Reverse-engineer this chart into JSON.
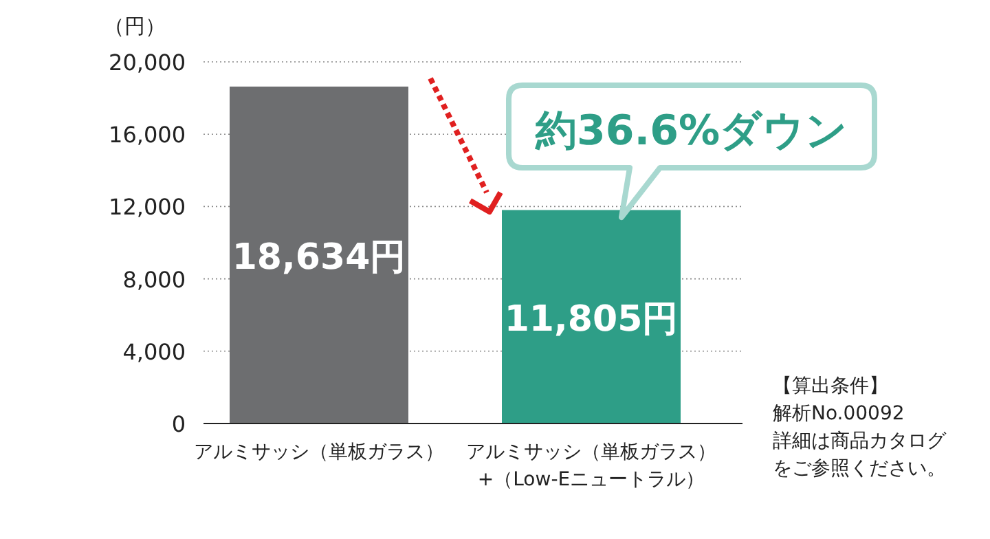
{
  "chart_data": {
    "type": "bar",
    "ylabel": "（円）",
    "categories": [
      "アルミサッシ（単板ガラス）",
      "アルミサッシ（単板ガラス）\n+（Low-Eニュートラル）"
    ],
    "values": [
      18634,
      11805
    ],
    "colors": [
      "#6d6e70",
      "#2e9e87"
    ],
    "value_labels": [
      "18,634円",
      "11,805円"
    ],
    "ylim": [
      0,
      20000
    ],
    "yticks": [
      {
        "value": 0,
        "label": "0"
      },
      {
        "value": 4000,
        "label": "4,000"
      },
      {
        "value": 8000,
        "label": "8,000"
      },
      {
        "value": 12000,
        "label": "12,000"
      },
      {
        "value": 16000,
        "label": "16,000"
      },
      {
        "value": 20000,
        "label": "20,000"
      }
    ],
    "grid": "y",
    "annotations": [
      "約36.6%ダウン",
      "【算出条件】",
      "解析No.00092",
      "詳細は商品カタログ",
      "をご参照ください。"
    ]
  }
}
